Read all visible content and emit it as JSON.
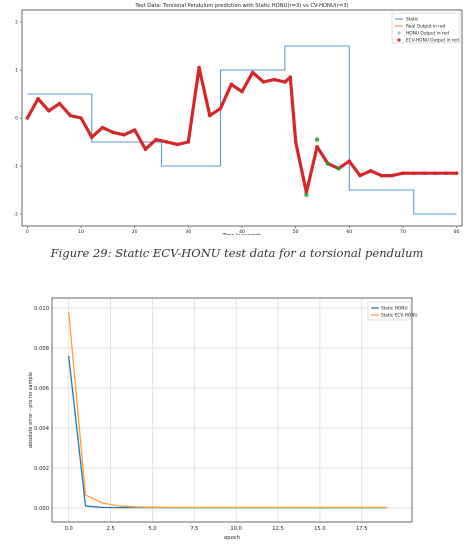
{
  "figure1": {
    "caption": "Figure 29: Static ECV-HONU test data for a torsional pendulum",
    "chart_data": {
      "type": "line",
      "title": "Test Data: Torsional Pendulum prediction with Static HONU(r=3) vs CV-HONU(r=3)",
      "xlabel": "Time in seconds",
      "ylabel": "",
      "xlim": [
        -1,
        81
      ],
      "ylim": [
        -2.25,
        2.25
      ],
      "xticks": [
        0,
        10,
        20,
        30,
        40,
        50,
        60,
        70,
        80
      ],
      "yticks": [
        2,
        1,
        0,
        -1,
        -2
      ],
      "grid": false,
      "legend": "top-right",
      "legend_entries": [
        "Static",
        "Real Output in red",
        "HONU Output in red",
        "ECV-HONU Output in red"
      ],
      "series": [
        {
          "name": "Static",
          "color": "#5b9bd5",
          "x": [
            0,
            12,
            12,
            25,
            25,
            36,
            36,
            48,
            48,
            60,
            60,
            72,
            72,
            80
          ],
          "y": [
            0.5,
            0.5,
            -0.5,
            -0.5,
            -1,
            -1,
            1,
            1,
            1.5,
            1.5,
            -1.5,
            -1.5,
            -2,
            -2
          ]
        },
        {
          "name": "Real Output in red",
          "color": "#d62728",
          "x": [
            0,
            2,
            4,
            6,
            8,
            10,
            12,
            14,
            16,
            18,
            20,
            22,
            24,
            26,
            28,
            30,
            32,
            34,
            36,
            38,
            40,
            42,
            44,
            46,
            48,
            49,
            50,
            52,
            54,
            56,
            58,
            60,
            62,
            64,
            66,
            68,
            70,
            72,
            74,
            76,
            78,
            80
          ],
          "y": [
            0.0,
            0.4,
            0.15,
            0.3,
            0.05,
            0.0,
            -0.4,
            -0.2,
            -0.3,
            -0.35,
            -0.25,
            -0.65,
            -0.45,
            -0.5,
            -0.55,
            -0.5,
            1.05,
            0.05,
            0.2,
            0.7,
            0.55,
            0.95,
            0.75,
            0.8,
            0.75,
            0.85,
            -0.5,
            -1.55,
            -0.6,
            -0.95,
            -1.05,
            -0.9,
            -1.2,
            -1.1,
            -1.2,
            -1.2,
            -1.15,
            -1.15,
            -1.15,
            -1.15,
            -1.15,
            -1.15
          ]
        },
        {
          "name": "HONU Output in red",
          "color": "#5b9bd5",
          "x": [],
          "y": []
        },
        {
          "name": "ECV-HONU Output in red",
          "color": "#2ca02c",
          "x": [
            52,
            54,
            56,
            58
          ],
          "y": [
            -1.6,
            -0.45,
            -0.95,
            -1.05
          ]
        }
      ]
    }
  },
  "figure2": {
    "chart_data": {
      "type": "line",
      "title": "",
      "xlabel": "epoch",
      "ylabel": "absolute error - pro no sample",
      "xlim": [
        -1,
        20.5
      ],
      "ylim": [
        -0.0007,
        0.0105
      ],
      "xticks": [
        0.0,
        2.5,
        5.0,
        7.5,
        10.0,
        12.5,
        15.0,
        17.5
      ],
      "xtick_labels": [
        "0.0",
        "2.5",
        "5.0",
        "7.5",
        "10.0",
        "12.5",
        "15.0",
        "17.5"
      ],
      "yticks": [
        0.0,
        0.002,
        0.004,
        0.006,
        0.008,
        0.01
      ],
      "ytick_labels": [
        "0.000",
        "0.002",
        "0.004",
        "0.006",
        "0.008",
        "0.010"
      ],
      "grid": true,
      "legend": "top-right",
      "series": [
        {
          "name": "Static HONU",
          "color": "#1f77b4",
          "x": [
            0,
            1,
            2,
            3,
            4,
            5,
            6,
            7,
            8,
            9,
            10,
            11,
            12,
            13,
            14,
            15,
            16,
            17,
            18,
            19
          ],
          "y": [
            0.0076,
            0.0001,
            3e-05,
            2e-05,
            2e-05,
            2e-05,
            2e-05,
            2e-05,
            2e-05,
            2e-05,
            2e-05,
            2e-05,
            2e-05,
            2e-05,
            2e-05,
            2e-05,
            2e-05,
            2e-05,
            2e-05,
            2e-05
          ]
        },
        {
          "name": "Static ECV-HONU",
          "color": "#ff9f33",
          "x": [
            0,
            1,
            2,
            3,
            4,
            5,
            6,
            7,
            8,
            9,
            10,
            11,
            12,
            13,
            14,
            15,
            16,
            17,
            18,
            19
          ],
          "y": [
            0.0098,
            0.00065,
            0.00025,
            0.0001,
            5e-05,
            4e-05,
            3e-05,
            3e-05,
            3e-05,
            3e-05,
            3e-05,
            3e-05,
            3e-05,
            3e-05,
            3e-05,
            3e-05,
            3e-05,
            3e-05,
            3e-05,
            3e-05
          ]
        }
      ]
    }
  }
}
